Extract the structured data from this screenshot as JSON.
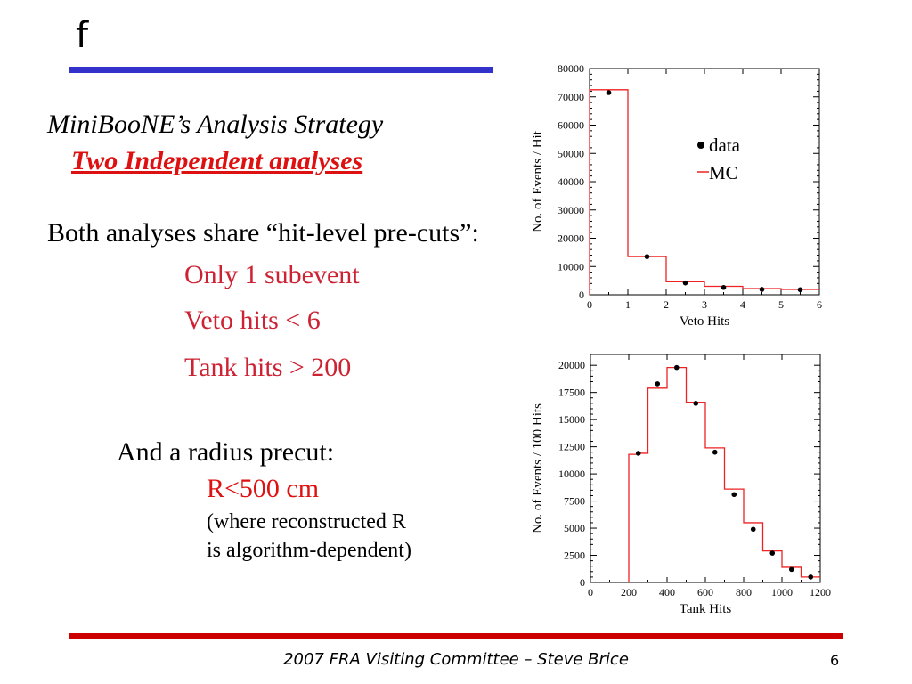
{
  "slide": {
    "title": "f",
    "heading": "MiniBooNE’s Analysis Strategy",
    "subheading": "Two Independent analyses",
    "shared_line": "Both analyses share “hit-level pre-cuts”:",
    "cuts": [
      "Only 1 subevent",
      "Veto hits < 6",
      "Tank hits > 200"
    ],
    "radius_line": "And a  radius precut:",
    "radius_value": "R<500 cm",
    "radius_note": [
      "(where reconstructed R",
      "is algorithm-dependent)"
    ],
    "footer": "2007 FRA Visiting Committee – Steve Brice",
    "page_number": "6"
  },
  "colors": {
    "top_rule": "#3333cc",
    "bottom_rule": "#cc0000",
    "cut_text": "#cc2233",
    "mc_line": "#ee2222"
  },
  "chart_data": [
    {
      "type": "line",
      "xlabel": "Veto Hits",
      "ylabel": "No. of Events / Hit",
      "xlim": [
        0,
        6
      ],
      "ylim": [
        0,
        80000
      ],
      "xticks": [
        0,
        1,
        2,
        3,
        4,
        5,
        6
      ],
      "yticks": [
        0,
        10000,
        20000,
        30000,
        40000,
        50000,
        60000,
        70000,
        80000
      ],
      "legend_placement": "top-right",
      "series": [
        {
          "name": "MC",
          "style": "histogram",
          "bin_edges": [
            0,
            1,
            2,
            3,
            4,
            5,
            6
          ],
          "values": [
            72500,
            13500,
            4600,
            3000,
            2200,
            1900
          ]
        },
        {
          "name": "data",
          "style": "points",
          "x": [
            0.5,
            1.5,
            2.5,
            3.5,
            4.5,
            5.5
          ],
          "values": [
            71500,
            13500,
            4200,
            2600,
            1900,
            1800
          ]
        }
      ]
    },
    {
      "type": "line",
      "xlabel": "Tank Hits",
      "ylabel": "No. of Events / 100 Hits",
      "xlim": [
        0,
        1200
      ],
      "ylim": [
        0,
        21000
      ],
      "xticks": [
        0,
        200,
        400,
        600,
        800,
        1000,
        1200
      ],
      "yticks": [
        0,
        2500,
        5000,
        7500,
        10000,
        12500,
        15000,
        17500,
        20000
      ],
      "series": [
        {
          "name": "MC",
          "style": "histogram",
          "bin_edges": [
            200,
            250,
            300,
            350,
            400,
            450,
            500,
            600,
            700,
            800,
            900,
            1000,
            1100,
            1200
          ],
          "values": [
            11800,
            11900,
            17900,
            17900,
            19800,
            19800,
            16600,
            12400,
            8600,
            5500,
            2900,
            1400,
            500
          ]
        },
        {
          "name": "data",
          "style": "points",
          "x": [
            250,
            350,
            450,
            550,
            650,
            750,
            850,
            950,
            1050,
            1150
          ],
          "values": [
            11900,
            18300,
            19800,
            16500,
            12000,
            8100,
            4900,
            2700,
            1200,
            500
          ]
        }
      ]
    }
  ]
}
